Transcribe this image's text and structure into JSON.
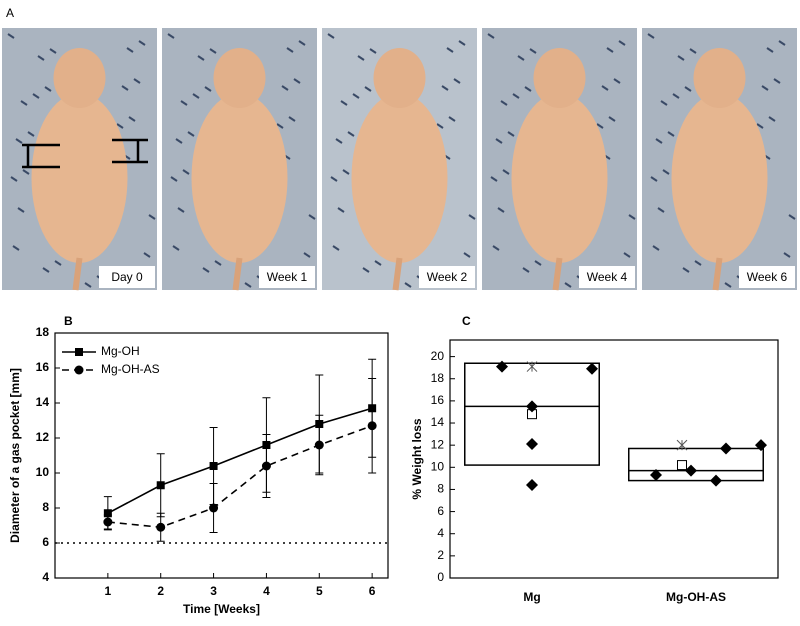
{
  "photos": {
    "panel": "A",
    "captions": [
      "Day 0",
      "Week 1",
      "Week 2",
      "Week 4",
      "Week 6"
    ]
  },
  "chart_data": [
    {
      "type": "line",
      "panel": "B",
      "xlabel": "Time [Weeks]",
      "ylabel": "Diameter of a gas pocket [mm]",
      "x": [
        1,
        2,
        3,
        4,
        5,
        6
      ],
      "series": [
        {
          "name": "Mg-OH",
          "color": "#000000",
          "marker": "square",
          "linestyle": "solid",
          "values": [
            7.7,
            9.3,
            10.4,
            11.6,
            12.8,
            13.7
          ],
          "errors": [
            0.95,
            1.8,
            2.2,
            2.7,
            2.8,
            2.8
          ]
        },
        {
          "name": "Mg-OH-AS",
          "color": "#000000",
          "marker": "circle",
          "linestyle": "dashed",
          "values": [
            7.2,
            6.9,
            8.0,
            10.4,
            11.6,
            12.7
          ],
          "errors": [
            0.4,
            0.8,
            1.4,
            1.8,
            1.7,
            2.7
          ]
        }
      ],
      "hlines": [
        6
      ],
      "xlim": [
        0,
        6.3
      ],
      "xticks": [
        1,
        2,
        3,
        4,
        5,
        6
      ],
      "ylim": [
        4,
        18
      ],
      "yticks": [
        4,
        6,
        8,
        10,
        12,
        14,
        16,
        18
      ],
      "legend": "upper left"
    },
    {
      "type": "box",
      "panel": "C",
      "ylabel": "% Weight loss",
      "categories": [
        "Mg",
        "Mg-OH-AS"
      ],
      "boxes": [
        {
          "low": 10.2,
          "high": 19.4,
          "median": 15.5,
          "mean": 14.8,
          "max": 19.1,
          "points": [
            19.1,
            18.9,
            15.5,
            12.1,
            8.4
          ]
        },
        {
          "low": 8.8,
          "high": 11.7,
          "median": 9.7,
          "mean": 10.2,
          "max": 12.0,
          "points": [
            9.3,
            9.7,
            8.8,
            11.7,
            12.0
          ]
        }
      ],
      "ylim": [
        0,
        21.5
      ],
      "yticks": [
        0,
        2,
        4,
        6,
        8,
        10,
        12,
        14,
        16,
        18,
        20
      ]
    }
  ]
}
